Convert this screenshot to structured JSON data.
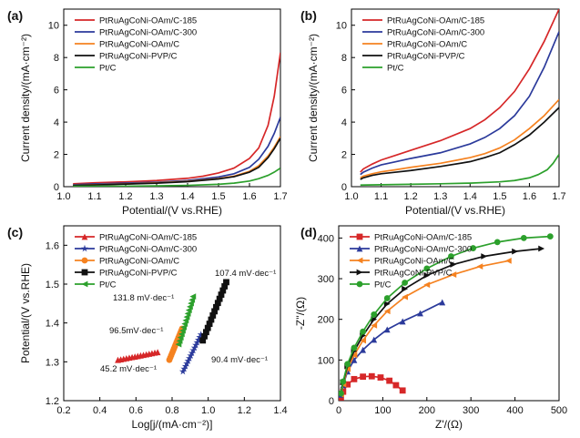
{
  "chart_data": [
    {
      "panel": "(a)",
      "type": "line",
      "xlabel": "Potential/(V vs.RHE)",
      "ylabel": "Current density/(mA·cm⁻²)",
      "xlim": [
        1.0,
        1.7
      ],
      "ylim": [
        0,
        11
      ],
      "xticks": [
        "1.0",
        "1.1",
        "1.2",
        "1.3",
        "1.4",
        "1.5",
        "1.6",
        "1.7"
      ],
      "yticks": [
        "0",
        "2",
        "4",
        "6",
        "8",
        "10"
      ],
      "legend_position": "top-left",
      "series": [
        {
          "name": "PtRuAgCoNi-OAm/C-185",
          "color": "#d62728",
          "x": [
            1.03,
            1.1,
            1.2,
            1.3,
            1.4,
            1.45,
            1.5,
            1.55,
            1.6,
            1.63,
            1.66,
            1.68,
            1.7
          ],
          "y": [
            0.18,
            0.24,
            0.3,
            0.38,
            0.52,
            0.65,
            0.85,
            1.15,
            1.75,
            2.4,
            3.8,
            5.6,
            8.3
          ]
        },
        {
          "name": "PtRuAgCoNi-OAm/C-300",
          "color": "#2b3a9b",
          "x": [
            1.03,
            1.1,
            1.2,
            1.3,
            1.4,
            1.5,
            1.55,
            1.6,
            1.63,
            1.66,
            1.68,
            1.7
          ],
          "y": [
            0.12,
            0.17,
            0.22,
            0.28,
            0.38,
            0.6,
            0.8,
            1.2,
            1.7,
            2.5,
            3.3,
            4.3
          ]
        },
        {
          "name": "PtRuAgCoNi-OAm/C",
          "color": "#f58220",
          "x": [
            1.03,
            1.1,
            1.2,
            1.3,
            1.4,
            1.5,
            1.55,
            1.6,
            1.63,
            1.66,
            1.68,
            1.7
          ],
          "y": [
            0.08,
            0.12,
            0.17,
            0.24,
            0.33,
            0.5,
            0.65,
            0.95,
            1.3,
            1.9,
            2.45,
            3.1
          ]
        },
        {
          "name": "PtRuAgCoNi-PVP/C",
          "color": "#111111",
          "x": [
            1.03,
            1.1,
            1.2,
            1.3,
            1.4,
            1.5,
            1.55,
            1.6,
            1.63,
            1.66,
            1.68,
            1.7
          ],
          "y": [
            0.07,
            0.11,
            0.16,
            0.22,
            0.31,
            0.48,
            0.62,
            0.9,
            1.2,
            1.8,
            2.35,
            3.0
          ]
        },
        {
          "name": "Pt/C",
          "color": "#2ca02c",
          "x": [
            1.03,
            1.2,
            1.3,
            1.4,
            1.5,
            1.55,
            1.6,
            1.63,
            1.66,
            1.68,
            1.7
          ],
          "y": [
            0.02,
            0.03,
            0.05,
            0.08,
            0.15,
            0.22,
            0.35,
            0.5,
            0.7,
            0.9,
            1.15
          ]
        }
      ]
    },
    {
      "panel": "(b)",
      "type": "line",
      "xlabel": "Potential/(V vs.RHE)",
      "ylabel": "Current density/(mA·cm⁻²)",
      "xlim": [
        1.0,
        1.7
      ],
      "ylim": [
        0,
        11
      ],
      "xticks": [
        "1.0",
        "1.1",
        "1.2",
        "1.3",
        "1.4",
        "1.5",
        "1.6",
        "1.7"
      ],
      "yticks": [
        "0",
        "2",
        "4",
        "6",
        "8",
        "10"
      ],
      "legend_position": "top-left",
      "series": [
        {
          "name": "PtRuAgCoNi-OAm/C-185",
          "color": "#d62728",
          "x": [
            1.03,
            1.04,
            1.07,
            1.1,
            1.15,
            1.2,
            1.3,
            1.4,
            1.45,
            1.5,
            1.55,
            1.6,
            1.65,
            1.7
          ],
          "y": [
            0.9,
            1.1,
            1.4,
            1.65,
            1.95,
            2.25,
            2.85,
            3.6,
            4.15,
            4.9,
            5.9,
            7.3,
            9.0,
            11.0
          ]
        },
        {
          "name": "PtRuAgCoNi-OAm/C-300",
          "color": "#2b3a9b",
          "x": [
            1.03,
            1.04,
            1.07,
            1.1,
            1.15,
            1.2,
            1.3,
            1.4,
            1.45,
            1.5,
            1.55,
            1.6,
            1.65,
            1.7
          ],
          "y": [
            0.75,
            0.9,
            1.15,
            1.35,
            1.55,
            1.75,
            2.1,
            2.65,
            3.05,
            3.6,
            4.4,
            5.6,
            7.4,
            9.6
          ]
        },
        {
          "name": "PtRuAgCoNi-OAm/C",
          "color": "#f58220",
          "x": [
            1.03,
            1.04,
            1.07,
            1.1,
            1.15,
            1.2,
            1.3,
            1.4,
            1.45,
            1.5,
            1.55,
            1.6,
            1.65,
            1.7
          ],
          "y": [
            0.55,
            0.65,
            0.8,
            0.92,
            1.05,
            1.2,
            1.45,
            1.8,
            2.05,
            2.4,
            2.9,
            3.6,
            4.4,
            5.4
          ]
        },
        {
          "name": "PtRuAgCoNi-PVP/C",
          "color": "#111111",
          "x": [
            1.03,
            1.04,
            1.07,
            1.1,
            1.15,
            1.2,
            1.3,
            1.4,
            1.45,
            1.5,
            1.55,
            1.6,
            1.65,
            1.7
          ],
          "y": [
            0.45,
            0.55,
            0.7,
            0.8,
            0.9,
            1.0,
            1.25,
            1.55,
            1.8,
            2.1,
            2.6,
            3.2,
            4.0,
            4.9
          ]
        },
        {
          "name": "Pt/C",
          "color": "#2ca02c",
          "x": [
            1.03,
            1.1,
            1.2,
            1.3,
            1.4,
            1.5,
            1.55,
            1.6,
            1.63,
            1.66,
            1.68,
            1.7
          ],
          "y": [
            0.1,
            0.12,
            0.15,
            0.18,
            0.22,
            0.3,
            0.38,
            0.55,
            0.75,
            1.05,
            1.45,
            2.0
          ]
        }
      ]
    },
    {
      "panel": "(c)",
      "type": "scatter",
      "xlabel": "Log[j/(mA·cm⁻²)]",
      "ylabel": "Potential/(V vs.RHE)",
      "xlim": [
        0.2,
        1.4
      ],
      "ylim": [
        1.2,
        1.65
      ],
      "xticks": [
        "0.2",
        "0.4",
        "0.6",
        "0.8",
        "1.0",
        "1.2",
        "1.4"
      ],
      "yticks": [
        "1.2",
        "1.3",
        "1.4",
        "1.5",
        "1.6"
      ],
      "legend_position": "top-left",
      "series": [
        {
          "name": "PtRuAgCoNi-OAm/C-185",
          "color": "#d62728",
          "marker": "triangle-up",
          "x": [
            0.5,
            0.72
          ],
          "y": [
            1.305,
            1.325
          ],
          "label": "45.2 mV·dec⁻¹"
        },
        {
          "name": "PtRuAgCoNi-OAm/C-300",
          "color": "#2b3a9b",
          "marker": "star",
          "x": [
            0.86,
            0.96
          ],
          "y": [
            1.275,
            1.37
          ],
          "label": "90.4 mV·dec⁻¹"
        },
        {
          "name": "PtRuAgCoNi-OAm/C",
          "color": "#f58220",
          "marker": "circle",
          "x": [
            0.785,
            0.855
          ],
          "y": [
            1.305,
            1.385
          ],
          "label": "96.5mV·dec⁻¹"
        },
        {
          "name": "PtRuAgCoNi-PVP/C",
          "color": "#111111",
          "marker": "square",
          "x": [
            0.97,
            1.1
          ],
          "y": [
            1.355,
            1.505
          ],
          "label": "107.4 mV·dec⁻¹"
        },
        {
          "name": "Pt/C",
          "color": "#2ca02c",
          "marker": "triangle-left",
          "x": [
            0.835,
            0.915
          ],
          "y": [
            1.345,
            1.468
          ],
          "label": "131.8 mV·dec⁻¹"
        }
      ]
    },
    {
      "panel": "(d)",
      "type": "line",
      "xlabel": "Z'/(Ω)",
      "ylabel": "-Z''/(Ω)",
      "xlim": [
        0,
        500
      ],
      "ylim": [
        0,
        430
      ],
      "xticks": [
        "0",
        "100",
        "200",
        "300",
        "400",
        "500"
      ],
      "yticks": [
        "0",
        "100",
        "200",
        "300",
        "400"
      ],
      "legend_position": "top-left",
      "series": [
        {
          "name": "PtRuAgCoNi-OAm/C-185",
          "color": "#d62728",
          "marker": "square",
          "x": [
            5,
            10,
            20,
            35,
            55,
            75,
            95,
            115,
            130,
            145
          ],
          "y": [
            8,
            22,
            40,
            53,
            59,
            60,
            57,
            49,
            38,
            25
          ]
        },
        {
          "name": "PtRuAgCoNi-OAm/C-300",
          "color": "#2b3a9b",
          "marker": "triangle-up",
          "x": [
            5,
            10,
            20,
            35,
            55,
            80,
            110,
            145,
            185,
            235
          ],
          "y": [
            15,
            38,
            72,
            100,
            125,
            150,
            175,
            195,
            215,
            242
          ]
        },
        {
          "name": "PtRuAgCoNi-OAm/C",
          "color": "#f58220",
          "marker": "triangle-left",
          "x": [
            5,
            10,
            20,
            35,
            55,
            80,
            110,
            150,
            200,
            260,
            320,
            385
          ],
          "y": [
            15,
            40,
            78,
            112,
            148,
            185,
            220,
            255,
            285,
            310,
            330,
            344
          ]
        },
        {
          "name": "PtRuAgCoNi-PVP/C",
          "color": "#111111",
          "marker": "triangle-right",
          "x": [
            5,
            10,
            20,
            35,
            55,
            80,
            110,
            150,
            200,
            260,
            330,
            400,
            460
          ],
          "y": [
            18,
            45,
            85,
            122,
            160,
            200,
            238,
            275,
            308,
            335,
            355,
            367,
            374
          ]
        },
        {
          "name": "Pt/C",
          "color": "#2ca02c",
          "marker": "circle",
          "x": [
            5,
            10,
            20,
            35,
            55,
            80,
            110,
            150,
            200,
            255,
            305,
            360,
            420,
            480
          ],
          "y": [
            18,
            47,
            90,
            130,
            170,
            212,
            252,
            290,
            325,
            355,
            375,
            390,
            400,
            404
          ]
        }
      ]
    }
  ]
}
